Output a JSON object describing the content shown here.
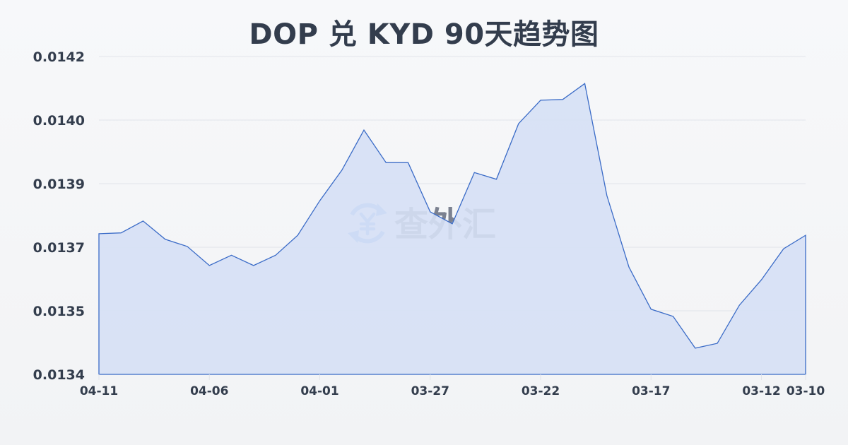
{
  "title": "DOP 兑 KYD 90天趋势图",
  "watermark": {
    "text": "查外汇",
    "icon": "yen-exchange-icon"
  },
  "colors": {
    "line": "#3a6bc7",
    "fill": "#d6e0f5",
    "grid": "#e1e4ea",
    "text": "#333d4d",
    "watermark_icon": "#7fb0f2",
    "watermark_text": "#7b8190"
  },
  "chart_data": {
    "type": "area",
    "title": "DOP 兑 KYD 90天趋势图",
    "xlabel": "",
    "ylabel": "",
    "ylim": [
      0.0134,
      0.0142
    ],
    "yticks": [
      "0.0142",
      "0.0140",
      "0.0139",
      "0.0137",
      "0.0135",
      "0.0134"
    ],
    "xticks": [
      "04-11",
      "04-06",
      "04-01",
      "03-27",
      "03-22",
      "03-17",
      "03-12",
      "03-10"
    ],
    "grid": true,
    "legend": "none",
    "x": [
      "04-11",
      "04-10",
      "04-09",
      "04-08",
      "04-07",
      "04-06",
      "04-05",
      "04-04",
      "04-03",
      "04-02",
      "04-01",
      "03-31",
      "03-30",
      "03-29",
      "03-28",
      "03-27",
      "03-26",
      "03-25",
      "03-24",
      "03-23",
      "03-22",
      "03-21",
      "03-20",
      "03-19",
      "03-18",
      "03-17",
      "03-16",
      "03-15",
      "03-14",
      "03-13",
      "03-12",
      "03-11",
      "03-10"
    ],
    "series": [
      {
        "name": "DOP/KYD",
        "values": [
          0.013754,
          0.013756,
          0.013786,
          0.01374,
          0.013722,
          0.013674,
          0.0137,
          0.013674,
          0.0137,
          0.01375,
          0.013837,
          0.013914,
          0.014015,
          0.013933,
          0.013933,
          0.013809,
          0.013779,
          0.013908,
          0.013891,
          0.014031,
          0.01409,
          0.014092,
          0.014132,
          0.01385,
          0.01367,
          0.013564,
          0.013546,
          0.013466,
          0.013478,
          0.013574,
          0.013638,
          0.013716,
          0.01375
        ]
      }
    ]
  }
}
